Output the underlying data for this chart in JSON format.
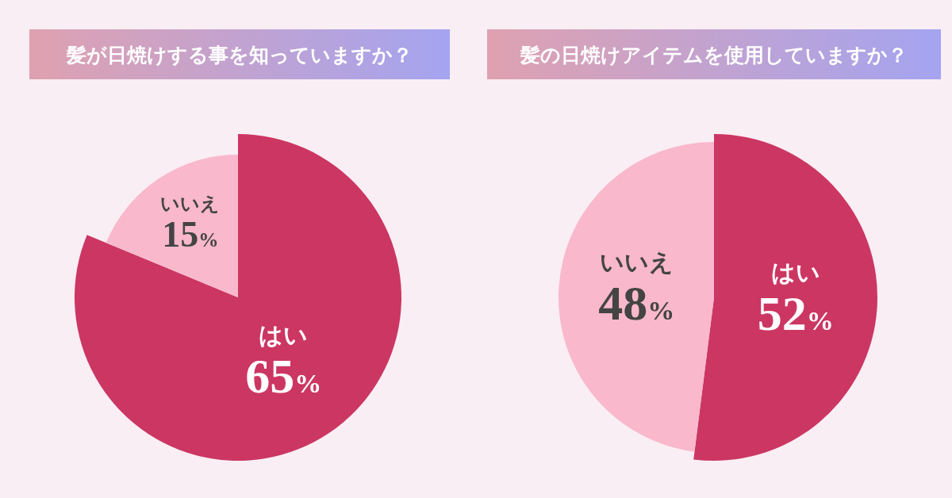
{
  "chart_data": [
    {
      "type": "pie",
      "title": "髪が日焼けする事を知っていますか？",
      "categories": [
        "はい",
        "いいえ"
      ],
      "values": [
        65,
        15
      ],
      "value_labels": [
        "65%",
        "15%"
      ],
      "colors": [
        "#cc3663",
        "#f9b8cc"
      ]
    },
    {
      "type": "pie",
      "title": "髪の日焼けアイテムを使用していますか？",
      "categories": [
        "はい",
        "いいえ"
      ],
      "values": [
        52,
        48
      ],
      "value_labels": [
        "52%",
        "48%"
      ],
      "colors": [
        "#cc3663",
        "#f9b8cc"
      ]
    }
  ]
}
